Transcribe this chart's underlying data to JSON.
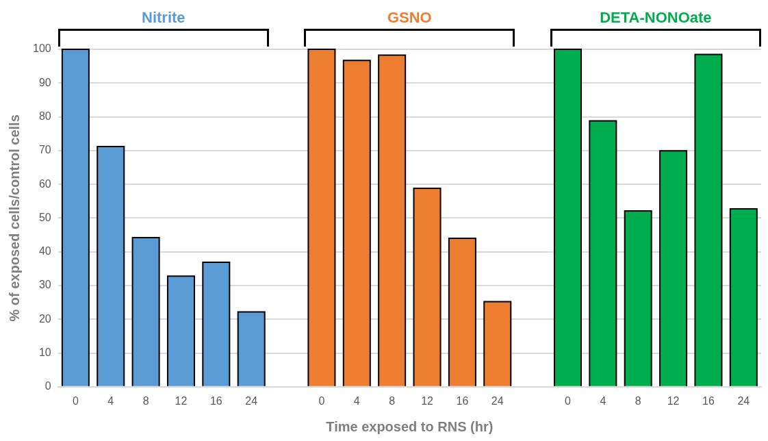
{
  "chart_data": {
    "type": "bar",
    "xlabel": "Time exposed to RNS (hr)",
    "ylabel": "% of exposed cells/control cells",
    "categories": [
      "0",
      "4",
      "8",
      "12",
      "16",
      "24",
      null,
      "0",
      "4",
      "8",
      "12",
      "16",
      "24",
      null,
      "0",
      "4",
      "8",
      "12",
      "16",
      "24"
    ],
    "series": [
      {
        "name": "Nitrite",
        "color": "#5b9bd5",
        "values": [
          100,
          71.2,
          44.2,
          32.8,
          36.9,
          22.2,
          null,
          null,
          null,
          null,
          null,
          null,
          null,
          null,
          null,
          null,
          null,
          null,
          null,
          null
        ]
      },
      {
        "name": "GSNO",
        "color": "#ed7d31",
        "values": [
          null,
          null,
          null,
          null,
          null,
          null,
          null,
          100,
          96.7,
          98.3,
          58.8,
          44.0,
          25.2,
          null,
          null,
          null,
          null,
          null,
          null,
          null
        ]
      },
      {
        "name": "DETA-NONOate",
        "color": "#00ad4e",
        "values": [
          null,
          null,
          null,
          null,
          null,
          null,
          null,
          null,
          null,
          null,
          null,
          null,
          null,
          null,
          100,
          78.8,
          52.1,
          69.9,
          98.5,
          52.7
        ]
      }
    ],
    "ylim": [
      0,
      100
    ],
    "yticks": [
      0,
      10,
      20,
      30,
      40,
      50,
      60,
      70,
      80,
      90,
      100
    ],
    "grid": "y"
  }
}
